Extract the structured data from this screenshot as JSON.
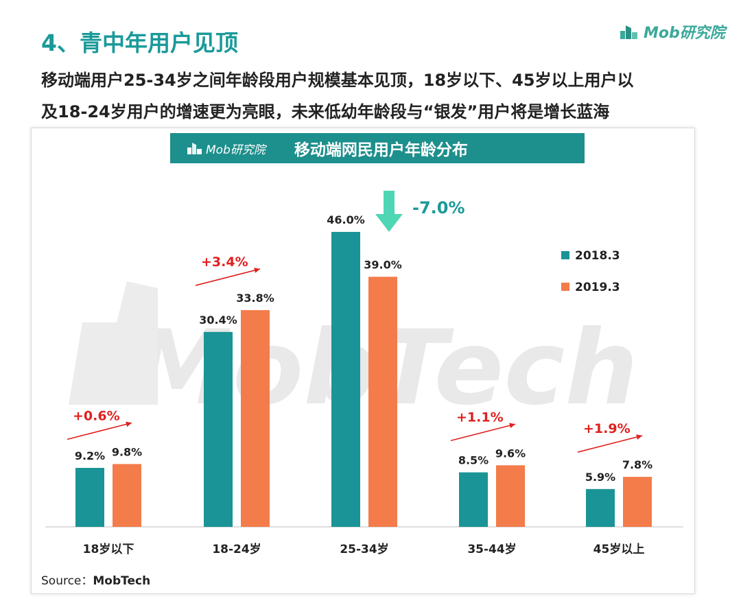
{
  "page": {
    "title": "4、青中年用户见顶",
    "logo_text": "Mob研究院",
    "subtitle_lines": [
      "移动端用户25-34岁之间年龄段用户规模基本见顶，18岁以下、45岁以上用户以",
      "及18-24岁用户的增速更为亮眼，未来低幼年龄段与“银发”用户将是增长蓝海"
    ],
    "source_label": "Source：",
    "source_name": "MobTech",
    "watermark": "MobTech"
  },
  "colors": {
    "series_2018": "#1a9496",
    "series_2019": "#f47c4a",
    "accent_title": "#1a9a9a",
    "increase": "#e02020",
    "decrease_arrow": "#4fd6b4",
    "decrease_text": "#1a9a9a"
  },
  "chart_data": {
    "type": "bar",
    "title": "移动端网民用户年龄分布",
    "banner_logo_text": "Mob研究院",
    "categories": [
      "18岁以下",
      "18-24岁",
      "25-34岁",
      "35-44岁",
      "45岁以上"
    ],
    "series": [
      {
        "name": "2018.3",
        "values": [
          9.2,
          30.4,
          46.0,
          8.5,
          5.9
        ],
        "labels": [
          "9.2%",
          "30.4%",
          "46.0%",
          "8.5%",
          "5.9%"
        ]
      },
      {
        "name": "2019.3",
        "values": [
          9.8,
          33.8,
          39.0,
          9.6,
          7.8
        ],
        "labels": [
          "9.8%",
          "33.8%",
          "39.0%",
          "9.6%",
          "7.8%"
        ]
      }
    ],
    "changes": [
      "+0.6%",
      "+3.4%",
      "-7.0%",
      "+1.1%",
      "+1.9%"
    ],
    "change_direction": [
      "up",
      "up",
      "down",
      "up",
      "up"
    ],
    "ylim": [
      0,
      46
    ],
    "legend_position": "right",
    "grid": false
  }
}
